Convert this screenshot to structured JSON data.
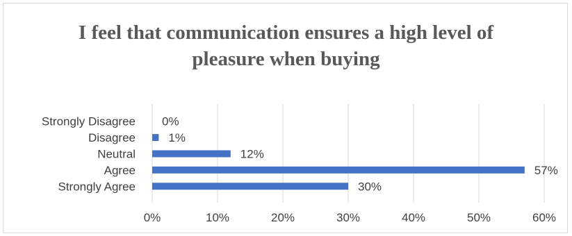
{
  "chart_data": {
    "type": "bar",
    "orientation": "horizontal",
    "title_lines": [
      "I feel that communication ensures a high level of",
      "pleasure when buying"
    ],
    "categories": [
      "Strongly Disagree",
      "Disagree",
      "Neutral",
      "Agree",
      "Strongly Agree"
    ],
    "values": [
      0,
      1,
      12,
      57,
      30
    ],
    "data_labels": [
      "0%",
      "1%",
      "12%",
      "57%",
      "30%"
    ],
    "x_ticks": [
      0,
      10,
      20,
      30,
      40,
      50,
      60
    ],
    "x_tick_labels": [
      "0%",
      "10%",
      "20%",
      "30%",
      "40%",
      "50%",
      "60%"
    ],
    "xlim": [
      0,
      60
    ],
    "grid": "vertical",
    "legend": "none",
    "bar_color": "#4472c4",
    "grid_color": "#d9d9d9"
  }
}
